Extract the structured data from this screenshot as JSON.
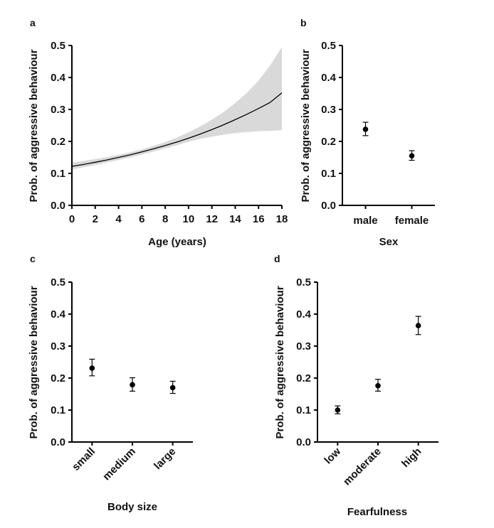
{
  "chart_data": [
    {
      "panel": "a",
      "type": "line",
      "xlabel": "Age (years)",
      "ylabel": "Prob. of aggressive behaviour",
      "xlim": [
        0,
        18
      ],
      "ylim": [
        0,
        0.5
      ],
      "xticks": [
        "0",
        "2",
        "4",
        "6",
        "8",
        "10",
        "12",
        "14",
        "16",
        "18"
      ],
      "yticks": [
        "0.0",
        "0.1",
        "0.2",
        "0.3",
        "0.4",
        "0.5"
      ],
      "grid": false,
      "series": [
        {
          "x": [
            0,
            1,
            2,
            3,
            4,
            5,
            6,
            7,
            8,
            9,
            10,
            11,
            12,
            13,
            14,
            15,
            16,
            17,
            18
          ],
          "values": [
            0.122,
            0.128,
            0.135,
            0.142,
            0.15,
            0.158,
            0.167,
            0.177,
            0.187,
            0.198,
            0.21,
            0.223,
            0.237,
            0.252,
            0.268,
            0.285,
            0.303,
            0.322,
            0.352
          ],
          "lower": [
            0.112,
            0.119,
            0.126,
            0.134,
            0.142,
            0.15,
            0.159,
            0.168,
            0.178,
            0.188,
            0.199,
            0.208,
            0.215,
            0.221,
            0.226,
            0.229,
            0.232,
            0.233,
            0.235
          ],
          "upper": [
            0.134,
            0.139,
            0.145,
            0.151,
            0.158,
            0.166,
            0.175,
            0.186,
            0.198,
            0.212,
            0.228,
            0.247,
            0.268,
            0.292,
            0.32,
            0.352,
            0.39,
            0.438,
            0.495
          ]
        }
      ]
    },
    {
      "panel": "b",
      "type": "scatter",
      "xlabel": "Sex",
      "ylabel": "Prob. of aggressive behaviour",
      "ylim": [
        0,
        0.5
      ],
      "yticks": [
        "0.0",
        "0.1",
        "0.2",
        "0.3",
        "0.4",
        "0.5"
      ],
      "categories": [
        "male",
        "female"
      ],
      "values": [
        0.238,
        0.155
      ],
      "lower": [
        0.218,
        0.141
      ],
      "upper": [
        0.26,
        0.171
      ]
    },
    {
      "panel": "c",
      "type": "scatter",
      "xlabel": "Body size",
      "ylabel": "Prob. of aggressive behaviour",
      "ylim": [
        0,
        0.5
      ],
      "yticks": [
        "0.0",
        "0.1",
        "0.2",
        "0.3",
        "0.4",
        "0.5"
      ],
      "categories": [
        "small",
        "medium",
        "large"
      ],
      "values": [
        0.231,
        0.179,
        0.17
      ],
      "lower": [
        0.207,
        0.159,
        0.152
      ],
      "upper": [
        0.259,
        0.201,
        0.19
      ]
    },
    {
      "panel": "d",
      "type": "scatter",
      "xlabel": "Fearfulness",
      "ylabel": "Prob. of aggressive behaviour",
      "ylim": [
        0,
        0.5
      ],
      "yticks": [
        "0.0",
        "0.1",
        "0.2",
        "0.3",
        "0.4",
        "0.5"
      ],
      "categories": [
        "low",
        "moderate",
        "high"
      ],
      "values": [
        0.1,
        0.176,
        0.364
      ],
      "lower": [
        0.088,
        0.159,
        0.336
      ],
      "upper": [
        0.113,
        0.196,
        0.393
      ]
    }
  ],
  "colors": {
    "ci_band": "#d9d9d9",
    "line": "#000000",
    "axis": "#000000"
  }
}
